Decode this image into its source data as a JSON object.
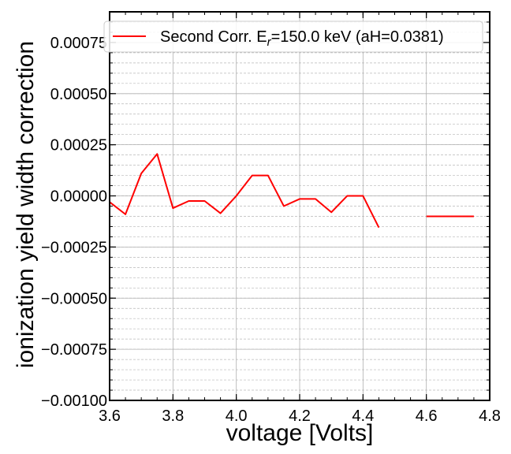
{
  "chart_data": {
    "type": "line",
    "xlabel": "voltage [Volts]",
    "ylabel": "ionization yield width correction",
    "xlim": [
      3.6,
      4.8
    ],
    "ylim": [
      -0.001,
      0.0009
    ],
    "x_ticks": [
      3.6,
      3.8,
      4.0,
      4.2,
      4.4,
      4.6,
      4.8
    ],
    "x_tick_labels": [
      "3.6",
      "3.8",
      "4.0",
      "4.2",
      "4.4",
      "4.6",
      "4.8"
    ],
    "y_ticks": [
      -0.001,
      -0.00075,
      -0.0005,
      -0.00025,
      0.0,
      0.00025,
      0.0005,
      0.00075
    ],
    "y_tick_labels": [
      "−0.00100",
      "−0.00075",
      "−0.00050",
      "−0.00025",
      "0.00000",
      "0.00025",
      "0.00050",
      "0.00075"
    ],
    "grid": true,
    "legend_position": "top-right",
    "series": [
      {
        "name": "Second Corr. E_r=150.0 keV (aH=0.0381)",
        "legend_main": "Second Corr. E",
        "legend_sub": "r",
        "legend_rest": "=150.0 keV (aH=0.0381)",
        "color": "#ff0000",
        "segments": [
          {
            "x": [
              3.6,
              3.65,
              3.7,
              3.75,
              3.8,
              3.85,
              3.9,
              3.95,
              4.0,
              4.05,
              4.1,
              4.15,
              4.2,
              4.25,
              4.3,
              4.35,
              4.4,
              4.45
            ],
            "y": [
              -3e-05,
              -9e-05,
              0.00011,
              0.000205,
              -6e-05,
              -2.5e-05,
              -2.5e-05,
              -8.5e-05,
              0.0,
              0.0001,
              0.0001,
              -5e-05,
              -1.5e-05,
              -1.5e-05,
              -8e-05,
              0.0,
              0.0,
              -0.000155
            ]
          },
          {
            "x": [
              4.6,
              4.65,
              4.7,
              4.75
            ],
            "y": [
              -0.0001,
              -0.0001,
              -0.0001,
              -0.0001
            ]
          }
        ]
      }
    ]
  }
}
